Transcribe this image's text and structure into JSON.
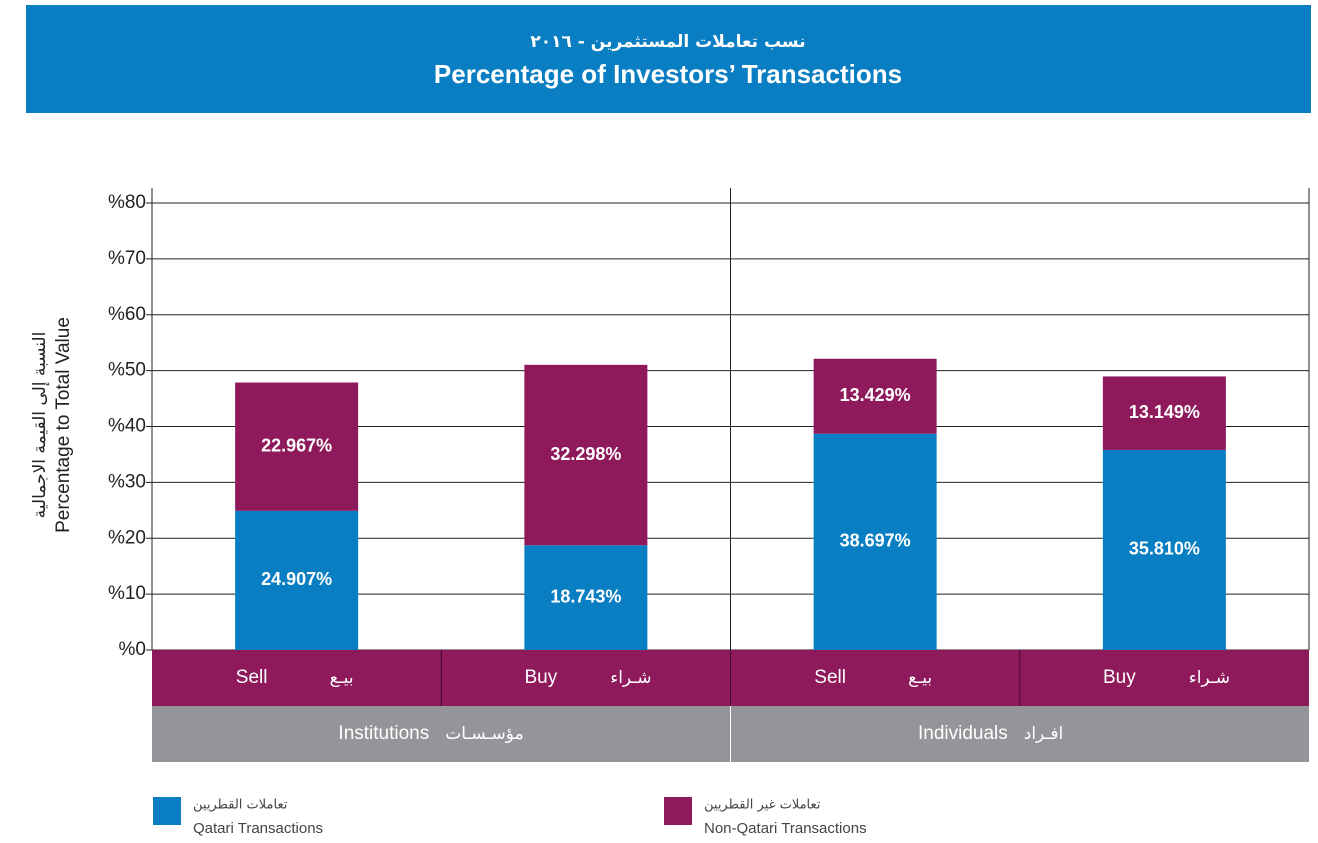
{
  "chart_data": {
    "type": "stacked_bar",
    "title_ar": "نسب تعاملات المستثمرين - ٢٠١٦",
    "title": "Percentage of Investors’ Transactions",
    "y_label": "Percentage to Total Value",
    "y_label_ar": "النسبة إلى القيمة الاجمالية",
    "categories": [
      "Sell",
      "Buy",
      "Sell",
      "Buy"
    ],
    "categories_ar": [
      "بيـع",
      "شـراء",
      "بيـع",
      "شـراء"
    ],
    "groups": [
      {
        "label": "Institutions",
        "label_ar": "مؤسـسـات"
      },
      {
        "label": "Individuals",
        "label_ar": "افـراد"
      }
    ],
    "series": [
      {
        "name": "Qatari Transactions",
        "name_ar": "تعاملات القطريين",
        "color": "#0a7ec2",
        "values": [
          24.907,
          18.743,
          38.697,
          35.81
        ],
        "value_labels": [
          "24.907%",
          "18.743%",
          "38.697%",
          "35.810%"
        ]
      },
      {
        "name": "Non-Qatari Transactions",
        "name_ar": "تعاملات غير القطريين",
        "color": "#8e1a5c",
        "values": [
          22.967,
          32.298,
          13.429,
          13.149
        ],
        "value_labels": [
          "22.967%",
          "32.298%",
          "13.429%",
          "13.149%"
        ]
      }
    ],
    "ylim": [
      0,
      80
    ],
    "yticks": [
      {
        "value": 0,
        "label": "%0"
      },
      {
        "value": 10,
        "label": "%10"
      },
      {
        "value": 20,
        "label": "%20"
      },
      {
        "value": 30,
        "label": "%30"
      },
      {
        "value": 40,
        "label": "%40"
      },
      {
        "value": 50,
        "label": "%50"
      },
      {
        "value": 60,
        "label": "%60"
      },
      {
        "value": 70,
        "label": "%70"
      },
      {
        "value": 80,
        "label": "%80"
      }
    ],
    "grid": true
  }
}
